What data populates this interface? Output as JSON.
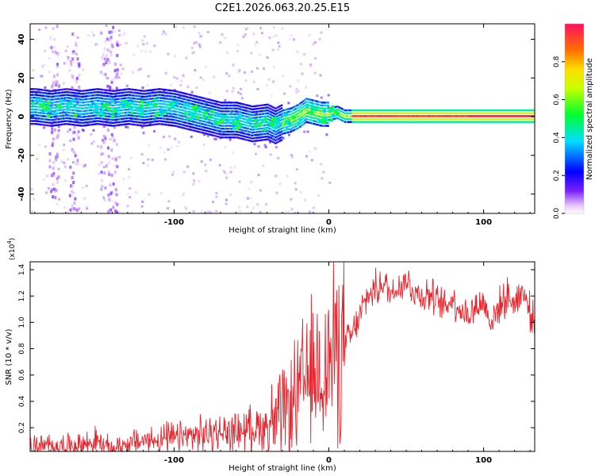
{
  "title": "C2E1.2026.063.20.25.E15",
  "chart_data": [
    {
      "type": "heatmap",
      "title": "C2E1.2026.063.20.25.E15",
      "xlabel": "Height of straight line (km)",
      "ylabel": "Frequency (Hz)",
      "xlim": [
        -193,
        133
      ],
      "ylim": [
        -50,
        48
      ],
      "xticks": [
        -100,
        0,
        100
      ],
      "yticks": [
        -40,
        -20,
        0,
        20,
        40
      ],
      "frequency_trace": {
        "x": [
          -190,
          -180,
          -170,
          -160,
          -150,
          -140,
          -130,
          -120,
          -110,
          -100,
          -90,
          -80,
          -70,
          -60,
          -50,
          -40,
          -35,
          -30,
          -25,
          -20,
          -15,
          -10,
          -5,
          0,
          5,
          10,
          20,
          40,
          60,
          80,
          90,
          100,
          120,
          133
        ],
        "y": [
          5,
          4,
          5,
          4,
          5,
          4,
          5,
          4,
          5,
          4,
          2,
          0,
          -2,
          -2,
          -4,
          -3,
          -5,
          -3,
          -2,
          0,
          3,
          2,
          1,
          1,
          2,
          0,
          0,
          0,
          0,
          0,
          0,
          0,
          0,
          0
        ]
      },
      "colorbar": {
        "label": "Normalized spectral amplitude",
        "ticks": [
          "0.0",
          "0.2",
          "0.4",
          "0.6",
          "0.8"
        ],
        "range": [
          0,
          1
        ]
      }
    },
    {
      "type": "line",
      "xlabel": "Height of straight line (km)",
      "ylabel": "SNR (10 * v/v)",
      "multiplier_base": "(x10",
      "multiplier_exp": "4",
      "multiplier_close": ")",
      "xlim": [
        -193,
        133
      ],
      "ylim": [
        0.02,
        1.46
      ],
      "xticks": [
        -100,
        0,
        100
      ],
      "yticks": [
        "0.2",
        "0.4",
        "0.6",
        "0.8",
        "1.0",
        "1.2",
        "1.4"
      ],
      "series": [
        {
          "name": "SNR",
          "color": "#e8242c",
          "x": [
            -193,
            -180,
            -160,
            -150,
            -145,
            -140,
            -130,
            -120,
            -100,
            -80,
            -60,
            -50,
            -40,
            -30,
            -25,
            -20,
            -15,
            -10,
            -5,
            0,
            5,
            10,
            15,
            20,
            25,
            30,
            35,
            40,
            45,
            50,
            55,
            60,
            65,
            70,
            75,
            80,
            85,
            90,
            95,
            100,
            105,
            110,
            115,
            120,
            125,
            130,
            133
          ],
          "y": [
            0.06,
            0.06,
            0.07,
            0.1,
            0.06,
            0.04,
            0.08,
            0.1,
            0.12,
            0.15,
            0.17,
            0.2,
            0.22,
            0.28,
            0.35,
            0.45,
            0.55,
            0.6,
            0.65,
            0.7,
            0.8,
            0.85,
            0.9,
            1.05,
            1.2,
            1.25,
            1.3,
            1.22,
            1.28,
            1.32,
            1.24,
            1.2,
            1.22,
            1.15,
            1.12,
            1.18,
            1.1,
            1.05,
            1.12,
            1.15,
            1.0,
            1.12,
            1.2,
            1.15,
            1.25,
            1.08,
            1.0
          ]
        }
      ]
    }
  ]
}
